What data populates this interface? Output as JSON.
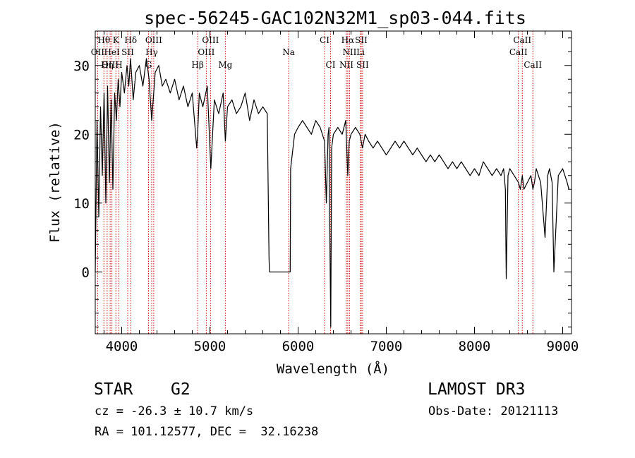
{
  "chart_data": {
    "type": "line",
    "title": "spec-56245-GAC102N32M1_sp03-044.fits",
    "xlabel": "Wavelength (Å)",
    "ylabel": "Flux (relative)",
    "xlim": [
      3700,
      9100
    ],
    "ylim": [
      -9,
      35
    ],
    "x_ticks": [
      4000,
      5000,
      6000,
      7000,
      8000,
      9000
    ],
    "y_ticks": [
      0,
      10,
      20,
      30
    ],
    "series": [
      {
        "name": "spectrum",
        "x": [
          3700,
          3720,
          3740,
          3760,
          3780,
          3800,
          3820,
          3840,
          3860,
          3880,
          3900,
          3920,
          3940,
          3960,
          3980,
          4000,
          4030,
          4060,
          4080,
          4100,
          4130,
          4160,
          4200,
          4240,
          4280,
          4310,
          4340,
          4380,
          4420,
          4460,
          4500,
          4550,
          4600,
          4650,
          4700,
          4750,
          4800,
          4850,
          4861,
          4880,
          4920,
          4970,
          5010,
          5050,
          5100,
          5150,
          5175,
          5200,
          5250,
          5300,
          5350,
          5400,
          5450,
          5500,
          5550,
          5600,
          5650,
          5670,
          5675,
          5690,
          5900,
          5910,
          5915,
          5960,
          6000,
          6050,
          6100,
          6150,
          6200,
          6250,
          6300,
          6320,
          6340,
          6350,
          6360,
          6370,
          6380,
          6400,
          6450,
          6500,
          6540,
          6563,
          6580,
          6600,
          6650,
          6700,
          6730,
          6760,
          6800,
          6850,
          6900,
          6950,
          7000,
          7050,
          7100,
          7150,
          7200,
          7250,
          7300,
          7350,
          7400,
          7450,
          7500,
          7550,
          7600,
          7650,
          7700,
          7750,
          7800,
          7850,
          7900,
          7950,
          8000,
          8050,
          8100,
          8150,
          8200,
          8250,
          8300,
          8330,
          8350,
          8360,
          8380,
          8400,
          8450,
          8498,
          8520,
          8542,
          8560,
          8600,
          8640,
          8662,
          8680,
          8700,
          8750,
          8800,
          8830,
          8850,
          8880,
          8900,
          8950,
          9000,
          9050,
          9070
        ],
        "y": [
          0,
          22,
          8,
          24,
          14,
          26,
          10,
          27,
          13,
          25,
          12,
          26,
          22,
          28,
          24,
          29,
          26,
          30,
          27,
          31,
          25,
          29,
          30,
          27,
          31,
          28,
          22,
          29,
          30,
          27,
          28,
          26,
          28,
          25,
          27,
          24,
          26,
          18,
          20,
          26,
          24,
          27,
          15,
          25,
          23,
          26,
          19,
          24,
          25,
          23,
          24,
          26,
          22,
          25,
          23,
          24,
          23,
          2,
          0,
          0,
          0,
          0,
          15,
          20,
          21,
          22,
          21,
          20,
          22,
          21,
          19,
          10,
          20,
          21,
          5,
          -8,
          18,
          20,
          21,
          20,
          22,
          14,
          19,
          20,
          21,
          20,
          18,
          20,
          19,
          18,
          19,
          18,
          17,
          18,
          19,
          18,
          19,
          18,
          17,
          18,
          17,
          16,
          17,
          16,
          17,
          16,
          15,
          16,
          15,
          16,
          15,
          14,
          15,
          14,
          16,
          15,
          14,
          15,
          14,
          15,
          12,
          -1,
          14,
          15,
          14,
          13,
          12,
          14,
          12,
          13,
          14,
          12,
          13,
          15,
          13,
          5,
          14,
          15,
          13,
          0,
          14,
          15,
          13,
          12
        ]
      }
    ],
    "spectral_lines": [
      {
        "name": "Hθ",
        "wavelength": 3798,
        "row": 0
      },
      {
        "name": "K",
        "wavelength": 3934,
        "row": 0
      },
      {
        "name": "Hδ",
        "wavelength": 4102,
        "row": 0
      },
      {
        "name": "OIII",
        "wavelength": 4363,
        "row": 0
      },
      {
        "name": "OIII",
        "wavelength": 5007,
        "row": 0
      },
      {
        "name": "CI",
        "wavelength": 6300,
        "row": 0
      },
      {
        "name": "Hα",
        "wavelength": 6563,
        "row": 0
      },
      {
        "name": "SII",
        "wavelength": 6716,
        "row": 0
      },
      {
        "name": "CaII",
        "wavelength": 8542,
        "row": 0
      },
      {
        "name": "OII",
        "wavelength": 3727,
        "row": 1
      },
      {
        "name": "HeI",
        "wavelength": 3889,
        "row": 1
      },
      {
        "name": "SII",
        "wavelength": 4068,
        "row": 1
      },
      {
        "name": "Hγ",
        "wavelength": 4340,
        "row": 1
      },
      {
        "name": "OIII",
        "wavelength": 4959,
        "row": 1
      },
      {
        "name": "Na",
        "wavelength": 5893,
        "row": 1
      },
      {
        "name": "NII",
        "wavelength": 6583,
        "row": 1
      },
      {
        "name": "Li",
        "wavelength": 6708,
        "row": 1
      },
      {
        "name": "CaII",
        "wavelength": 8498,
        "row": 1
      },
      {
        "name": "OIII",
        "wavelength": 3869,
        "row": 2
      },
      {
        "name": "Hη",
        "wavelength": 3835,
        "row": 2
      },
      {
        "name": "H",
        "wavelength": 3968,
        "row": 2
      },
      {
        "name": "G",
        "wavelength": 4304,
        "row": 2
      },
      {
        "name": "Hβ",
        "wavelength": 4861,
        "row": 2
      },
      {
        "name": "Mg",
        "wavelength": 5175,
        "row": 2
      },
      {
        "name": "CI",
        "wavelength": 6368,
        "row": 2
      },
      {
        "name": "NII",
        "wavelength": 6548,
        "row": 2
      },
      {
        "name": "SII",
        "wavelength": 6731,
        "row": 2
      },
      {
        "name": "CaII",
        "wavelength": 8662,
        "row": 2
      }
    ]
  },
  "info": {
    "object_class": "STAR",
    "subclass": "G2",
    "survey": "LAMOST DR3",
    "redshift_text": "cz = -26.3 ± 10.7 km/s",
    "obs_date": "Obs-Date: 20121113",
    "coords": "RA = 101.12577, DEC =  32.16238"
  },
  "colors": {
    "spectrum": "#000000",
    "line_marker": "#cc0000",
    "axis": "#000000",
    "background": "#ffffff"
  }
}
